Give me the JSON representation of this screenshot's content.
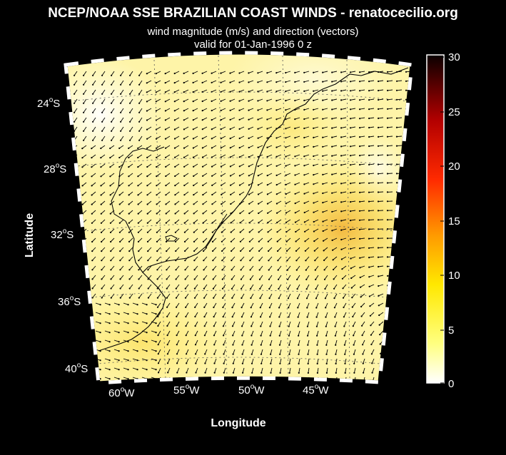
{
  "title": "NCEP/NOAA SSE BRAZILIAN COAST WINDS - renatocecilio.org",
  "subtitle1": "wind magnitude (m/s) and direction (vectors)",
  "subtitle2": "valid for 01-Jan-1996  0 z",
  "axes": {
    "xlabel": "Longitude",
    "ylabel": "Latitude",
    "lat_ticks": [
      {
        "deg": "24",
        "sup": "o",
        "hem": "S"
      },
      {
        "deg": "28",
        "sup": "o",
        "hem": "S"
      },
      {
        "deg": "32",
        "sup": "o",
        "hem": "S"
      },
      {
        "deg": "36",
        "sup": "o",
        "hem": "S"
      },
      {
        "deg": "40",
        "sup": "o",
        "hem": "S"
      }
    ],
    "lon_ticks": [
      {
        "deg": "60",
        "sup": "o",
        "hem": "W"
      },
      {
        "deg": "55",
        "sup": "o",
        "hem": "W"
      },
      {
        "deg": "50",
        "sup": "o",
        "hem": "W"
      },
      {
        "deg": "45",
        "sup": "o",
        "hem": "W"
      }
    ]
  },
  "colorbar": {
    "ticks": [
      "30",
      "25",
      "20",
      "15",
      "10",
      "5",
      "0"
    ],
    "range": [
      0,
      30
    ],
    "colormap": "hot (reversed)"
  },
  "map": {
    "region": "South Atlantic off southern Brazil, Uruguay and Argentina",
    "lon_range": [
      -63,
      -43
    ],
    "lat_range": [
      -41,
      -22
    ],
    "frame_colors": [
      "#000000",
      "#ffffff"
    ]
  }
}
